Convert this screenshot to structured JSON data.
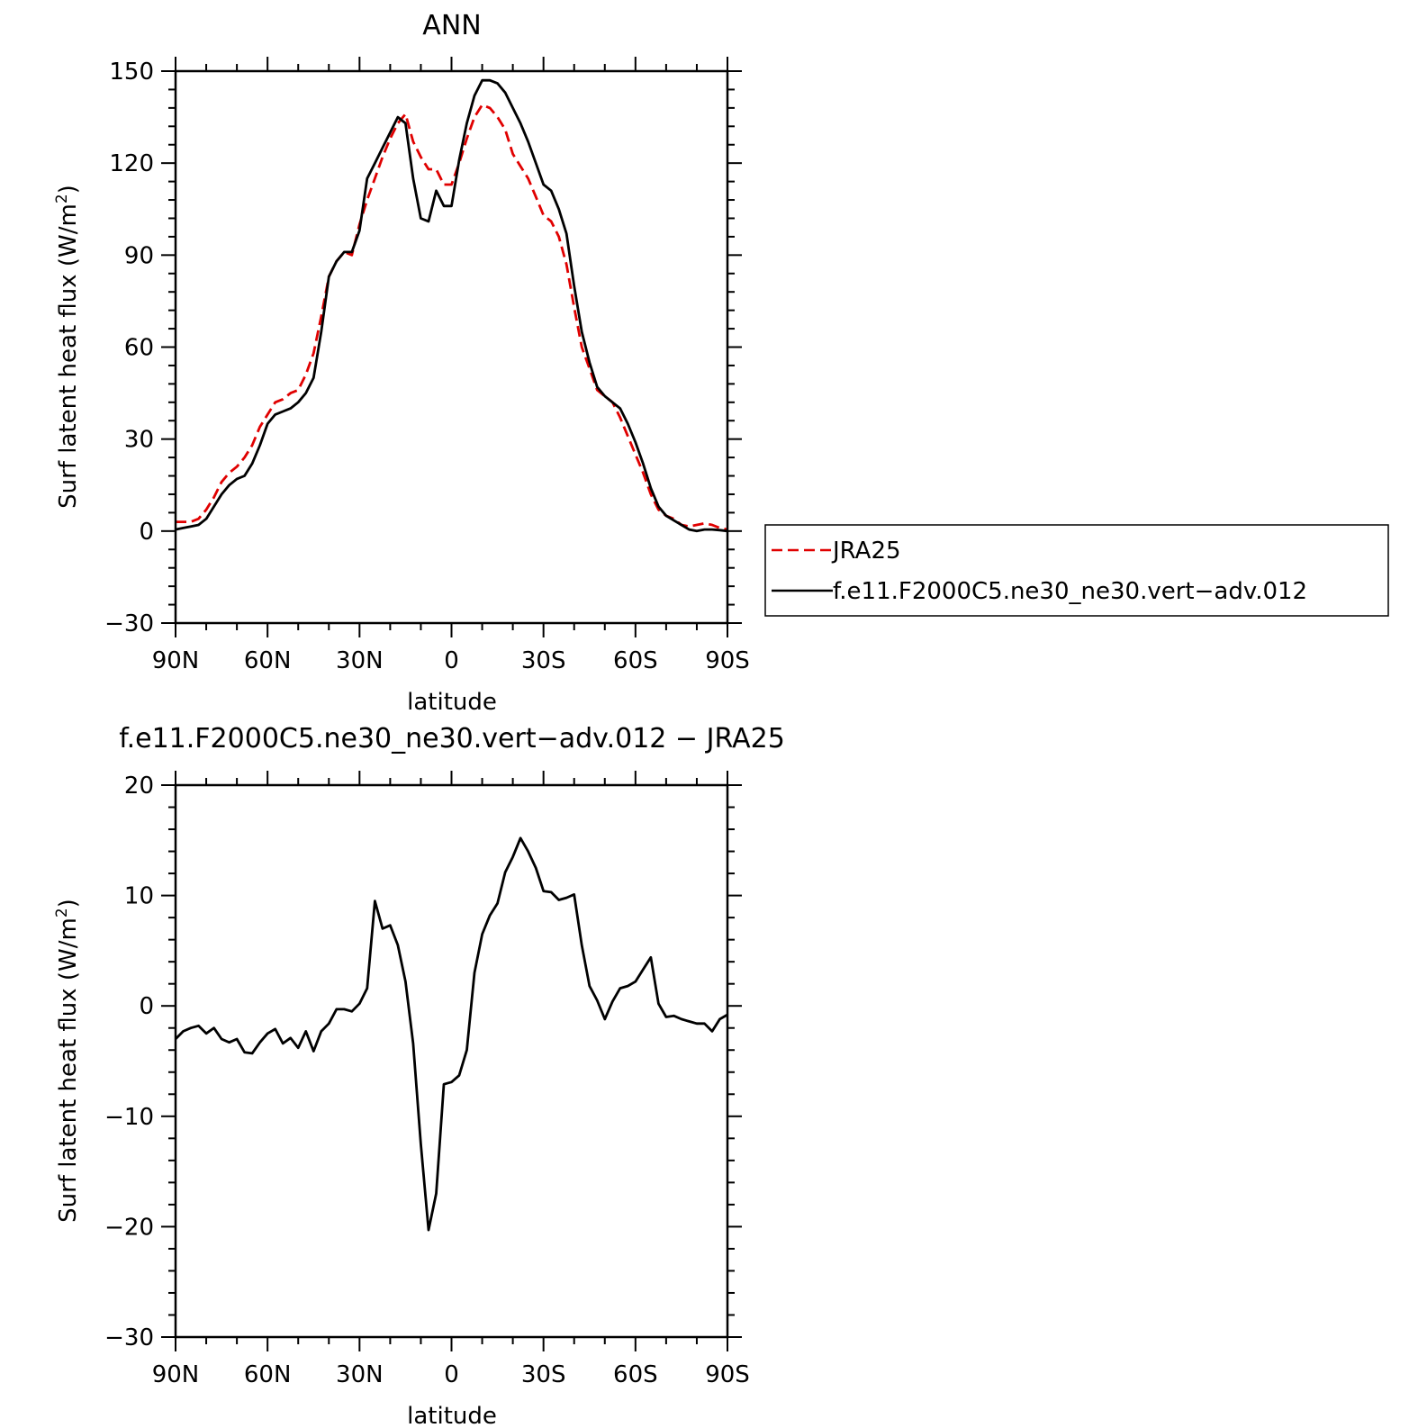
{
  "chart_data": [
    {
      "type": "line",
      "title": "ANN",
      "xlabel": "latitude",
      "ylabel": "Surf latent heat flux (W/m",
      "ylabel_sup": "2",
      "ylabel_close": ")",
      "xlim": [
        90,
        -90
      ],
      "ylim": [
        -30,
        150
      ],
      "yticks": [
        -30,
        0,
        30,
        60,
        90,
        120,
        150
      ],
      "ytick_labels": [
        "−30",
        "0",
        "30",
        "60",
        "90",
        "120",
        "150"
      ],
      "xticks": [
        90,
        60,
        30,
        0,
        -30,
        -60,
        -90
      ],
      "xtick_labels": [
        "90N",
        "60N",
        "30N",
        "0",
        "30S",
        "60S",
        "90S"
      ],
      "legend_position": "right",
      "series": [
        {
          "name": "JRA25",
          "color": "#e00000",
          "dash": true,
          "x": [
            90,
            87.5,
            85,
            82.5,
            80,
            77.5,
            75,
            72.5,
            70,
            67.5,
            65,
            62.5,
            60,
            57.5,
            55,
            52.5,
            50,
            47.5,
            45,
            42.5,
            40,
            37.5,
            35,
            32.5,
            30,
            27.5,
            25,
            22.5,
            20,
            17.5,
            15,
            12.5,
            10,
            7.5,
            5,
            2.5,
            0,
            -2.5,
            -5,
            -7.5,
            -10,
            -12.5,
            -15,
            -17.5,
            -20,
            -22.5,
            -25,
            -27.5,
            -30,
            -32.5,
            -35,
            -37.5,
            -40,
            -42.5,
            -45,
            -47.5,
            -50,
            -52.5,
            -55,
            -57.5,
            -60,
            -62.5,
            -65,
            -67.5,
            -70,
            -72.5,
            -75,
            -77.5,
            -80,
            -82.5,
            -85,
            -87.5,
            -90
          ],
          "y": [
            3,
            3,
            3,
            4,
            7,
            11,
            16,
            19,
            21,
            24,
            28,
            34,
            38,
            42,
            43,
            45,
            46,
            51,
            58,
            70,
            83,
            88,
            91,
            90,
            100,
            108,
            115,
            122,
            128,
            133,
            136,
            127,
            122,
            118,
            118,
            113,
            113,
            120,
            128,
            135,
            139,
            138,
            135,
            131,
            123,
            119,
            115,
            109,
            103,
            101,
            96,
            87,
            73,
            60,
            53,
            46,
            44,
            42,
            37,
            31,
            25,
            19,
            12,
            7,
            5,
            4,
            2,
            1.5,
            2,
            2.5,
            2,
            1,
            0.5
          ]
        },
        {
          "name": "f.e11.F2000C5.ne30_ne30.vert−adv.012",
          "color": "#000000",
          "dash": false,
          "x": [
            90,
            87.5,
            85,
            82.5,
            80,
            77.5,
            75,
            72.5,
            70,
            67.5,
            65,
            62.5,
            60,
            57.5,
            55,
            52.5,
            50,
            47.5,
            45,
            42.5,
            40,
            37.5,
            35,
            32.5,
            30,
            27.5,
            25,
            22.5,
            20,
            17.5,
            15,
            12.5,
            10,
            7.5,
            5,
            2.5,
            0,
            -2.5,
            -5,
            -7.5,
            -10,
            -12.5,
            -15,
            -17.5,
            -20,
            -22.5,
            -25,
            -27.5,
            -30,
            -32.5,
            -35,
            -37.5,
            -40,
            -42.5,
            -45,
            -47.5,
            -50,
            -52.5,
            -55,
            -57.5,
            -60,
            -62.5,
            -65,
            -67.5,
            -70,
            -72.5,
            -75,
            -77.5,
            -80,
            -82.5,
            -85,
            -87.5,
            -90
          ],
          "y": [
            0.5,
            1,
            1.5,
            2,
            4,
            8,
            12,
            15,
            17,
            18,
            22,
            28,
            35,
            38,
            39,
            40,
            42,
            45,
            50,
            65,
            83,
            88,
            91,
            91,
            98,
            115,
            120,
            125,
            130,
            135,
            133,
            115,
            102,
            101,
            111,
            106,
            106,
            121,
            133,
            142,
            147,
            147,
            146,
            143,
            138,
            133,
            127,
            120,
            113,
            111,
            105,
            97,
            80,
            65,
            55,
            47,
            44,
            42,
            40,
            35,
            29,
            22,
            14,
            8,
            5,
            3.5,
            2,
            0.5,
            0,
            0.5,
            0.5,
            0.3,
            0
          ]
        }
      ]
    },
    {
      "type": "line",
      "title": "f.e11.F2000C5.ne30_ne30.vert−adv.012 − JRA25",
      "xlabel": "latitude",
      "ylabel": "Surf latent heat flux (W/m",
      "ylabel_sup": "2",
      "ylabel_close": ")",
      "xlim": [
        90,
        -90
      ],
      "ylim": [
        -30,
        20
      ],
      "yticks": [
        -30,
        -20,
        -10,
        0,
        10,
        20
      ],
      "ytick_labels": [
        "−30",
        "−20",
        "−10",
        "0",
        "10",
        "20"
      ],
      "xticks": [
        90,
        60,
        30,
        0,
        -30,
        -60,
        -90
      ],
      "xtick_labels": [
        "90N",
        "60N",
        "30N",
        "0",
        "30S",
        "60S",
        "90S"
      ],
      "series": [
        {
          "color": "#000000",
          "dash": false,
          "x": [
            90,
            87.5,
            85,
            82.5,
            80,
            77.5,
            75,
            72.5,
            70,
            67.5,
            65,
            62.5,
            60,
            57.5,
            55,
            52.5,
            50,
            47.5,
            45,
            42.5,
            40,
            37.5,
            35,
            32.5,
            30,
            27.5,
            25,
            22.5,
            20,
            17.5,
            15,
            12.5,
            10,
            7.5,
            5,
            2.5,
            0,
            -2.5,
            -5,
            -7.5,
            -10,
            -12.5,
            -15,
            -17.5,
            -20,
            -22.5,
            -25,
            -27.5,
            -30,
            -32.5,
            -35,
            -37.5,
            -40,
            -42.5,
            -45,
            -47.5,
            -50,
            -52.5,
            -55,
            -57.5,
            -60,
            -62.5,
            -65,
            -67.5,
            -70,
            -72.5,
            -75,
            -77.5,
            -80,
            -82.5,
            -85,
            -87.5,
            -90
          ],
          "y": [
            -3,
            -2.3,
            -2,
            -1.8,
            -2.5,
            -2,
            -3,
            -3.3,
            -3,
            -4.2,
            -4.3,
            -3.3,
            -2.5,
            -2.1,
            -3.4,
            -2.9,
            -3.8,
            -2.3,
            -4.1,
            -2.3,
            -1.6,
            -0.3,
            -0.3,
            -0.5,
            0.2,
            1.6,
            9.5,
            7,
            7.3,
            5.5,
            2.2,
            -3.4,
            -12.5,
            -20.3,
            -17,
            -7.1,
            -6.9,
            -6.3,
            -4,
            3,
            6.5,
            8.2,
            9.3,
            12.1,
            13.5,
            15.2,
            14,
            12.5,
            10.4,
            10.3,
            9.6,
            9.8,
            10.1,
            5.5,
            1.8,
            0.5,
            -1.2,
            0.4,
            1.6,
            1.8,
            2.2,
            3.3,
            4.4,
            0.2,
            -1,
            -0.9,
            -1.2,
            -1.4,
            -1.6,
            -1.6,
            -2.3,
            -1.2,
            -0.8
          ]
        }
      ]
    }
  ]
}
